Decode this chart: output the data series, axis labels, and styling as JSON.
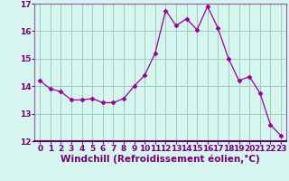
{
  "x": [
    0,
    1,
    2,
    3,
    4,
    5,
    6,
    7,
    8,
    9,
    10,
    11,
    12,
    13,
    14,
    15,
    16,
    17,
    18,
    19,
    20,
    21,
    22,
    23
  ],
  "y": [
    14.2,
    13.9,
    13.8,
    13.5,
    13.5,
    13.55,
    13.4,
    13.4,
    13.55,
    14.0,
    14.4,
    15.2,
    16.75,
    16.2,
    16.45,
    16.05,
    16.9,
    16.1,
    15.0,
    14.2,
    14.35,
    13.75,
    12.6,
    12.2
  ],
  "line_color": "#990099",
  "marker": "D",
  "marker_size": 2.5,
  "bg_color": "#d5f5ee",
  "grid_color": "#a0ccbb",
  "xlabel": "Windchill (Refroidissement éolien,°C)",
  "xlabel_fontsize": 7.5,
  "tick_fontsize": 6.5,
  "ylim": [
    12,
    17
  ],
  "xlim": [
    -0.5,
    23.5
  ],
  "yticks": [
    12,
    13,
    14,
    15,
    16,
    17
  ],
  "xticks": [
    0,
    1,
    2,
    3,
    4,
    5,
    6,
    7,
    8,
    9,
    10,
    11,
    12,
    13,
    14,
    15,
    16,
    17,
    18,
    19,
    20,
    21,
    22,
    23
  ],
  "spine_color": "#9955aa",
  "tick_color": "#770077"
}
